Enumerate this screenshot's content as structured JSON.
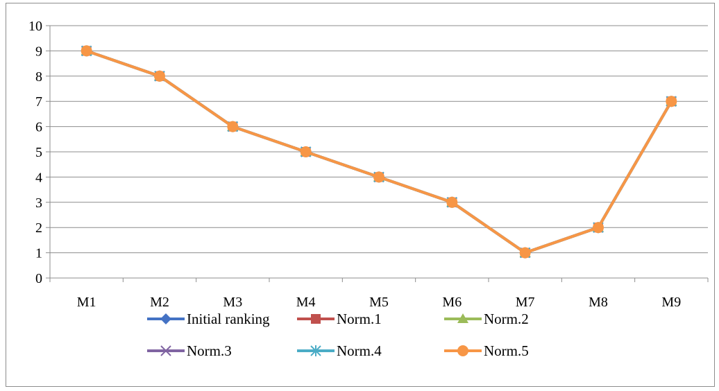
{
  "chart_data": {
    "type": "line",
    "categories": [
      "M1",
      "M2",
      "M3",
      "M4",
      "M5",
      "M6",
      "M7",
      "M8",
      "M9"
    ],
    "ylim": [
      0,
      10
    ],
    "yticks": [
      0,
      1,
      2,
      3,
      4,
      5,
      6,
      7,
      8,
      9,
      10
    ],
    "grid": "horizontal",
    "legend_position": "bottom",
    "series": [
      {
        "name": "Initial ranking",
        "color": "#4472C4",
        "marker": "diamond",
        "values": [
          9,
          8,
          6,
          5,
          4,
          3,
          1,
          2,
          7
        ]
      },
      {
        "name": "Norm.1",
        "color": "#C0504D",
        "marker": "square",
        "values": [
          9,
          8,
          6,
          5,
          4,
          3,
          1,
          2,
          7
        ]
      },
      {
        "name": "Norm.2",
        "color": "#9BBB59",
        "marker": "triangle",
        "values": [
          9,
          8,
          6,
          5,
          4,
          3,
          1,
          2,
          7
        ]
      },
      {
        "name": "Norm.3",
        "color": "#8064A2",
        "marker": "x",
        "values": [
          9,
          8,
          6,
          5,
          4,
          3,
          1,
          2,
          7
        ]
      },
      {
        "name": "Norm.4",
        "color": "#4BACC6",
        "marker": "star",
        "values": [
          9,
          8,
          6,
          5,
          4,
          3,
          1,
          2,
          7
        ]
      },
      {
        "name": "Norm.5",
        "color": "#F79646",
        "marker": "circle",
        "values": [
          9,
          8,
          6,
          5,
          4,
          3,
          1,
          2,
          7
        ]
      }
    ]
  }
}
